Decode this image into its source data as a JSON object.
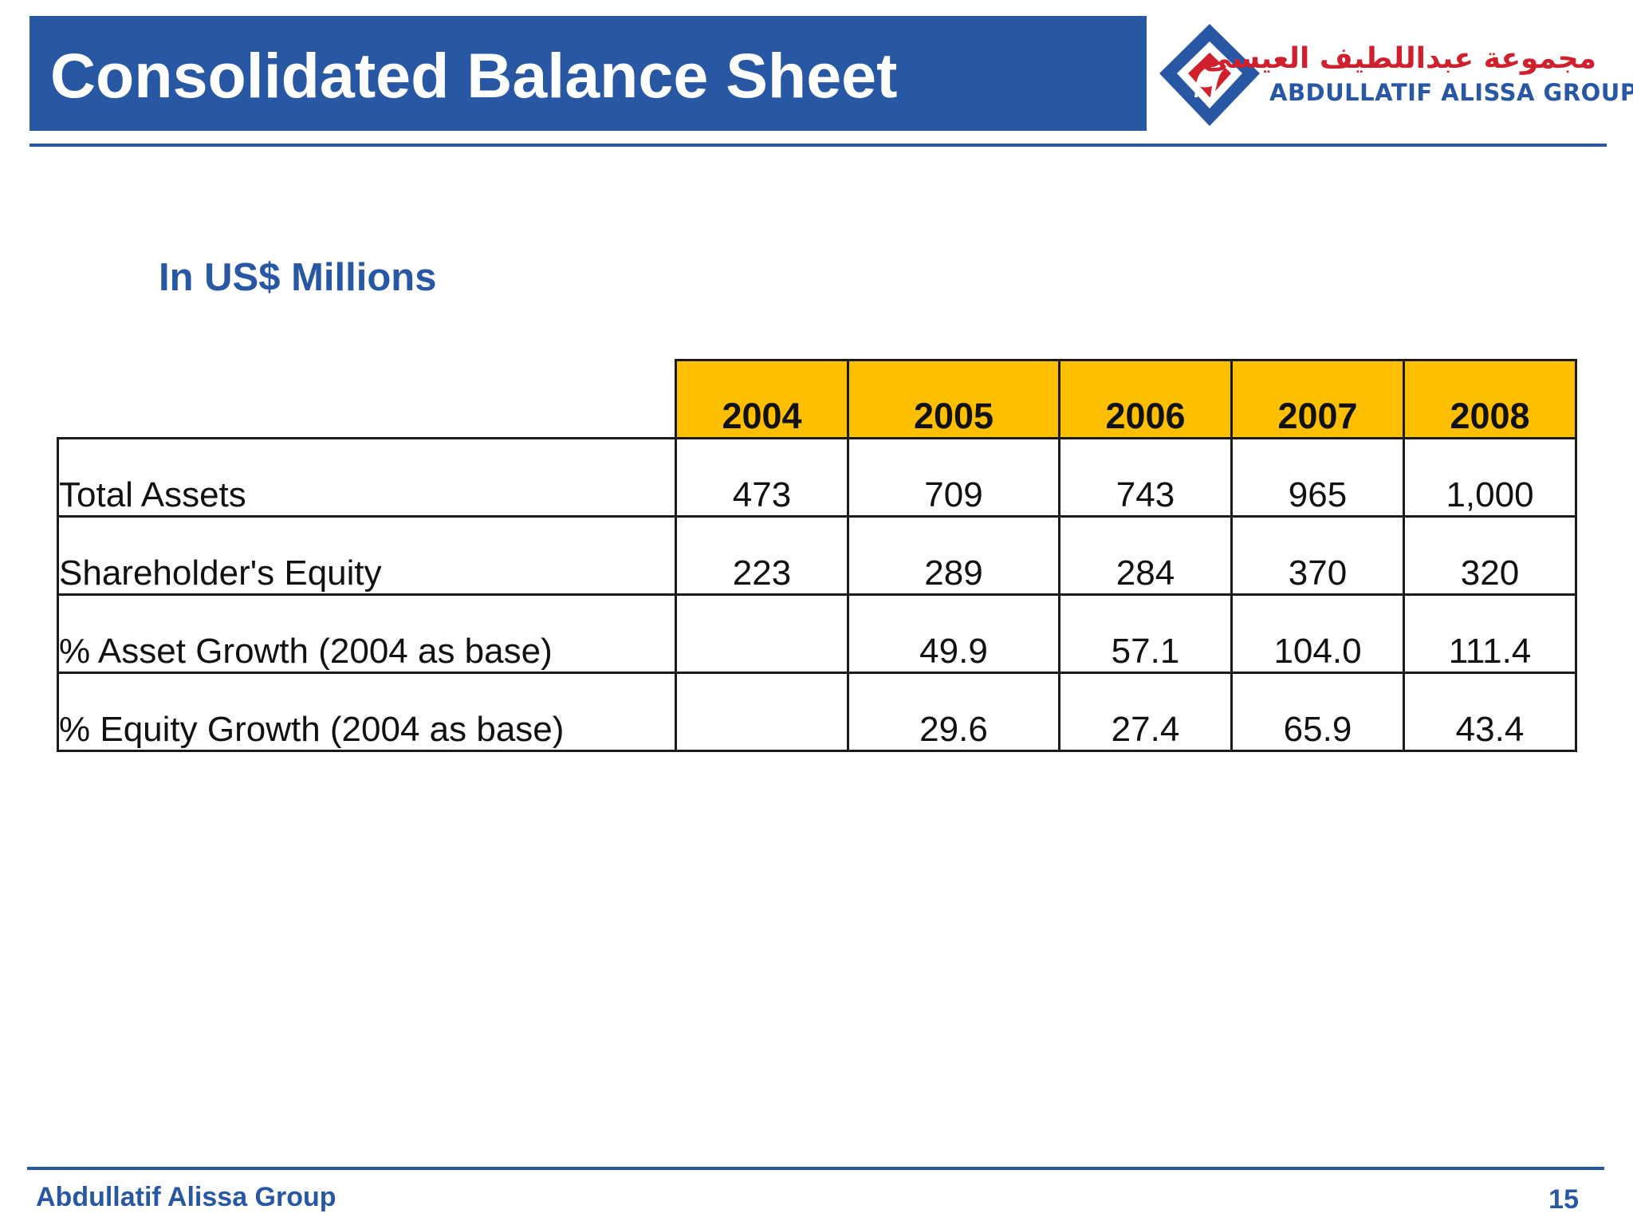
{
  "slide": {
    "title": "Consolidated Balance Sheet",
    "subtitle": "In US$ Millions",
    "page_number": "15"
  },
  "logo": {
    "icon": "camel-diamond-logo-icon",
    "arabic_name": "مجموعة عبداللطيف العيسى",
    "english_name": "ABDULLATIF ALISSA GROUP",
    "colors": {
      "blue": "#2857a4",
      "red": "#d0202e"
    }
  },
  "footer": {
    "company": "Abdullatif Alissa Group"
  },
  "table": {
    "headers": [
      "2004",
      "2005",
      "2006",
      "2007",
      "2008"
    ],
    "rows": [
      {
        "label": "Total Assets",
        "values": [
          "473",
          "709",
          "743",
          "965",
          "1,000"
        ]
      },
      {
        "label": "Shareholder's Equity",
        "values": [
          "223",
          "289",
          "284",
          "370",
          "320"
        ]
      },
      {
        "label": "% Asset Growth (2004 as base)",
        "values": [
          "",
          "49.9",
          "57.1",
          "104.0",
          "111.4"
        ]
      },
      {
        "label": "% Equity Growth (2004 as base)",
        "values": [
          "",
          "29.6",
          "27.4",
          "65.9",
          "43.4"
        ]
      }
    ]
  },
  "colors": {
    "title_bar": "#2857a4",
    "header_fill": "#fdbf00",
    "accent_text": "#2857a4"
  }
}
